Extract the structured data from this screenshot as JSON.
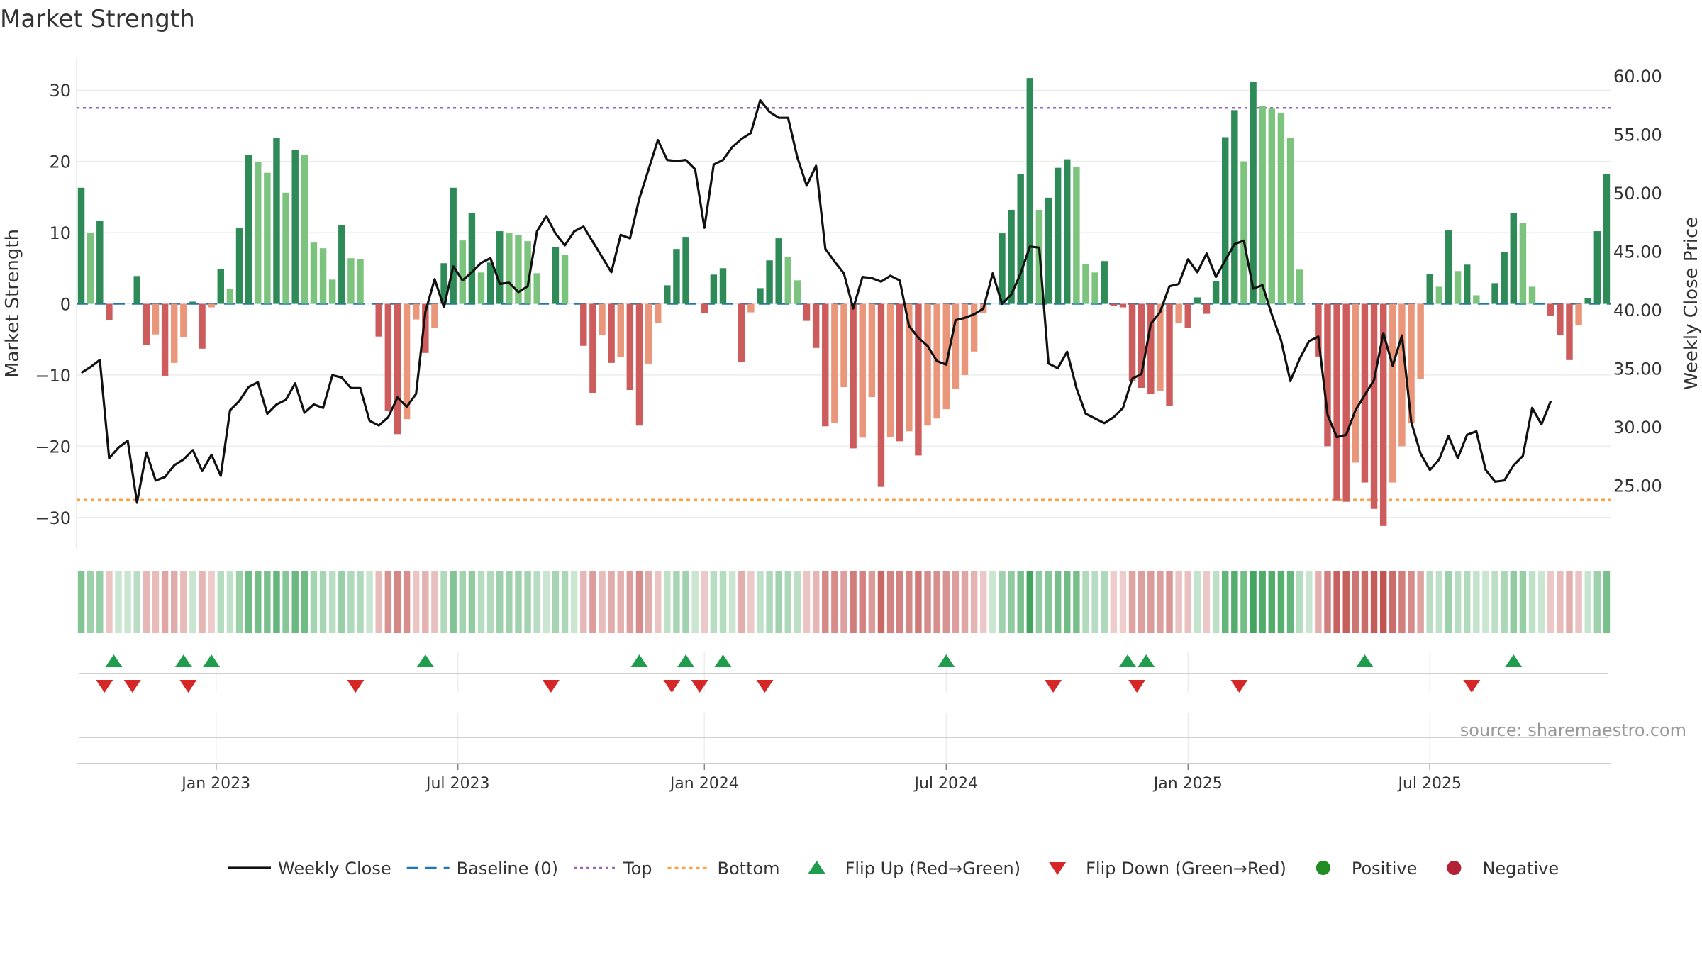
{
  "chart_data": {
    "type": "bar",
    "title": "Market Strength",
    "ylabel": "Market Strength",
    "y2label": "Weekly Close Price",
    "ylim": [
      -34.5,
      34.5
    ],
    "y2lim": [
      19.5,
      61.5
    ],
    "y_ticks": [
      30,
      20,
      10,
      0,
      -10,
      -20,
      -30
    ],
    "y_tick_labels": [
      "30",
      "20",
      "10",
      "0",
      "−10",
      "−20",
      "−30"
    ],
    "y2_ticks": [
      60,
      55,
      50,
      45,
      40,
      35,
      30,
      25
    ],
    "y2_tick_labels": [
      "60.00",
      "55.00",
      "50.00",
      "45.00",
      "40.00",
      "35.00",
      "30.00",
      "25.00"
    ],
    "x_ticks": [
      {
        "label": "Jan 2023",
        "week": 15
      },
      {
        "label": "Jul 2023",
        "week": 41
      },
      {
        "label": "Jan 2024",
        "week": 67.5
      },
      {
        "label": "Jul 2024",
        "week": 93.5
      },
      {
        "label": "Jan 2025",
        "week": 119.5
      },
      {
        "label": "Jul 2025",
        "week": 145.5
      }
    ],
    "thresholds": {
      "top": 27.5,
      "bottom": -27.5,
      "baseline": 0
    },
    "strength": [
      16.3,
      10,
      11.7,
      -2.3,
      0,
      0,
      3.9,
      -5.8,
      -4.3,
      -10.1,
      -8.3,
      -4.7,
      0.3,
      -6.3,
      -0.5,
      4.9,
      2.1,
      10.6,
      20.9,
      19.9,
      18.4,
      23.3,
      15.6,
      21.6,
      20.9,
      8.6,
      7.8,
      3.4,
      11.1,
      6.4,
      6.3,
      0,
      -4.6,
      -15,
      -18.3,
      -16.2,
      -2.2,
      -6.9,
      -3.4,
      5.7,
      16.3,
      8.9,
      12.7,
      4.4,
      5.8,
      10.2,
      9.9,
      9.7,
      8.8,
      4.3,
      0,
      8,
      6.9,
      0,
      -5.9,
      -12.5,
      -4.4,
      -8.3,
      -7.5,
      -12.1,
      -17.1,
      -8.4,
      -2.7,
      2.6,
      7.7,
      9.4,
      0,
      -1.3,
      4.1,
      5,
      0,
      -8.2,
      -1.2,
      2.2,
      6.1,
      9.2,
      6.6,
      3.3,
      -2.4,
      -6.2,
      -17.2,
      -16.7,
      -11.7,
      -20.3,
      -18.8,
      -13.1,
      -25.7,
      -18.7,
      -19.3,
      -17.9,
      -21.3,
      -17.1,
      -16.1,
      -14.8,
      -11.9,
      -10,
      -6.7,
      -1.3,
      0,
      9.9,
      13.2,
      18.2,
      31.7,
      13.2,
      14.9,
      19.1,
      20.3,
      19.2,
      5.6,
      4.4,
      6,
      -0.3,
      -0.5,
      -10.8,
      -11.8,
      -12.7,
      -12.2,
      -14.3,
      -2.7,
      -3.4,
      0.9,
      -1.4,
      3.2,
      23.4,
      27.2,
      20,
      31.2,
      27.8,
      27.4,
      26.8,
      23.3,
      4.8,
      0,
      -7.4,
      -20,
      -27.6,
      -27.8,
      -22.3,
      -25.1,
      -28.8,
      -31.2,
      -25.1,
      -20,
      -16.8,
      -10.6,
      4.2,
      2.4,
      10.3,
      4.6,
      5.5,
      1.2,
      0,
      2.9,
      7.3,
      12.7,
      11.4,
      2.4,
      0,
      -1.7,
      -4.4,
      -7.9,
      -3,
      0.8,
      10.2,
      18.2
    ],
    "weekly_close": [
      34.6,
      35.1,
      35.7,
      27.3,
      28.2,
      28.8,
      23.5,
      27.8,
      25.4,
      25.7,
      26.7,
      27.2,
      28,
      26.2,
      27.6,
      25.8,
      31.4,
      32.2,
      33.4,
      33.8,
      31.1,
      31.9,
      32.3,
      33.7,
      31.2,
      31.9,
      31.6,
      34.4,
      34.2,
      33.3,
      33.3,
      30.5,
      30.1,
      30.8,
      32.5,
      31.7,
      32.8,
      39.8,
      42.6,
      40.2,
      43.7,
      42.5,
      43.2,
      44,
      44.4,
      42.2,
      42.3,
      41.5,
      42,
      46.7,
      48,
      46.5,
      45.5,
      46.7,
      47.1,
      45.8,
      44.5,
      43.2,
      46.4,
      46.1,
      49.5,
      52,
      54.5,
      52.8,
      52.7,
      52.8,
      52,
      47,
      52.4,
      52.8,
      53.9,
      54.6,
      55.1,
      57.9,
      56.9,
      56.4,
      56.4,
      53,
      50.6,
      52.3,
      45.2,
      44.1,
      43.1,
      40.1,
      42.8,
      42.7,
      42.4,
      42.9,
      42.5,
      38.6,
      37.6,
      36.9,
      35.6,
      35.3,
      39.1,
      39.3,
      39.6,
      40.1,
      43.1,
      40.5,
      41.3,
      43.1,
      45.4,
      45.3,
      35.4,
      35,
      36.4,
      33.3,
      31.1,
      30.7,
      30.3,
      30.8,
      31.6,
      34.1,
      34.5,
      38.8,
      39.8,
      42,
      42.2,
      44.3,
      43.2,
      44.8,
      42.8,
      44.2,
      45.6,
      45.9,
      41.8,
      42.1,
      39.6,
      37.4,
      33.9,
      35.8,
      37.3,
      37.7,
      31,
      29.1,
      29.3,
      31.4,
      32.7,
      34,
      38,
      35.2,
      37.8,
      30.4,
      27.7,
      26.3,
      27.2,
      29.2,
      27.3,
      29.3,
      29.6,
      26.3,
      25.3,
      25.4,
      26.7,
      27.5,
      31.6,
      30.2,
      32.2
    ],
    "colors": {
      "bar_pos_strong": "#2e8b57",
      "bar_pos_weak": "#7cc47e",
      "bar_neg_strong": "#cd5c5c",
      "bar_neg_weak": "#e9967a",
      "close_line": "#111111",
      "baseline": "#1f77b4",
      "top": "#9467bd",
      "bottom": "#ff9f40",
      "flip_up": "#1f9d4c",
      "flip_down": "#d62728",
      "positive": "#228b22",
      "negative": "#b22234"
    },
    "flip_up_weeks": [
      4,
      11.5,
      14.5,
      37.5,
      60.5,
      65.5,
      69.5,
      93.5,
      113,
      115,
      138.5,
      154.5
    ],
    "flip_down_weeks": [
      3,
      6,
      12,
      30,
      51,
      64,
      67,
      74,
      105,
      114,
      125,
      150
    ],
    "legend": [
      {
        "label": "Weekly Close",
        "kind": "line"
      },
      {
        "label": "Baseline (0)",
        "kind": "dash"
      },
      {
        "label": "Top",
        "kind": "dot-purple"
      },
      {
        "label": "Bottom",
        "kind": "dot-orange"
      },
      {
        "label": "Flip Up (Red→Green)",
        "kind": "tri-up"
      },
      {
        "label": "Flip Down (Green→Red)",
        "kind": "tri-down"
      },
      {
        "label": "Positive",
        "kind": "circle-pos"
      },
      {
        "label": "Negative",
        "kind": "circle-neg"
      }
    ],
    "source": "source: sharemaestro.com"
  }
}
